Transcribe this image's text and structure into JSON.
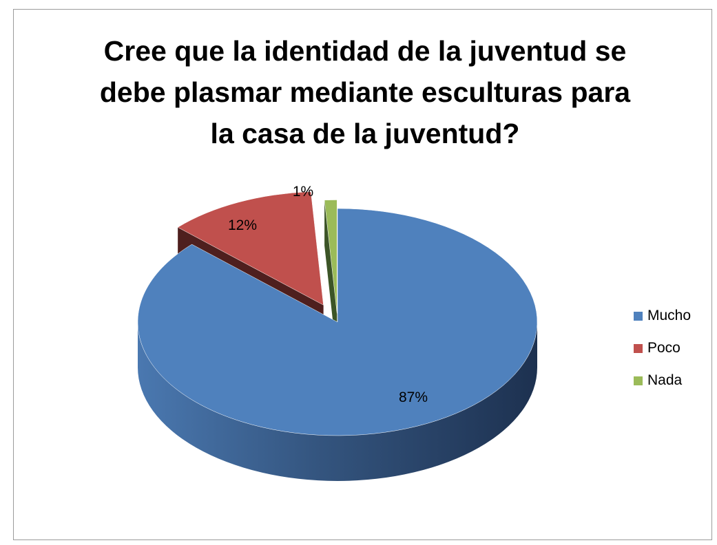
{
  "chart_data": {
    "type": "pie",
    "title_lines": [
      "Cree que la identidad de la juventud se",
      "debe plasmar  mediante esculturas para",
      "la casa de la juventud?"
    ],
    "categories": [
      "Mucho",
      "Poco",
      "Nada"
    ],
    "values": [
      87,
      12,
      1
    ],
    "labels": [
      "87%",
      "12%",
      "1%"
    ],
    "colors": [
      "#4f81bd",
      "#c0504d",
      "#9bbb59"
    ],
    "legend_position": "right",
    "style": "3d-exploded"
  }
}
